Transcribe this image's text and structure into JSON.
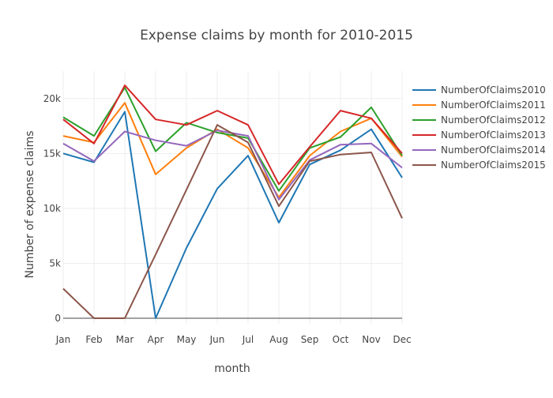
{
  "chart_data": {
    "type": "line",
    "title": "Expense claims by month for 2010-2015",
    "xlabel": "month",
    "ylabel": "Number of expense claims",
    "categories": [
      "Jan",
      "Feb",
      "Mar",
      "Apr",
      "May",
      "Jun",
      "Jul",
      "Aug",
      "Sep",
      "Oct",
      "Nov",
      "Dec"
    ],
    "ylim": [
      -500,
      22500
    ],
    "y_ticks": [
      0,
      5000,
      10000,
      15000,
      20000
    ],
    "y_tick_labels": [
      "0",
      "5k",
      "10k",
      "15k",
      "20k"
    ],
    "grid": true,
    "legend_position": "right",
    "series": [
      {
        "name": "NumberOfClaims2010",
        "color": "#1f77b4",
        "values": [
          15000,
          14200,
          18800,
          0,
          6400,
          11800,
          14800,
          8700,
          14000,
          15300,
          17200,
          12800
        ]
      },
      {
        "name": "NumberOfClaims2011",
        "color": "#ff7f0e",
        "values": [
          16600,
          16000,
          19600,
          13100,
          15500,
          17200,
          15500,
          11000,
          14800,
          17000,
          18200,
          14700
        ]
      },
      {
        "name": "NumberOfClaims2012",
        "color": "#2ca02c",
        "values": [
          18300,
          16600,
          21000,
          15200,
          17800,
          16900,
          16400,
          11600,
          15500,
          16500,
          19200,
          14800
        ]
      },
      {
        "name": "NumberOfClaims2013",
        "color": "#d62728",
        "values": [
          18100,
          15900,
          21200,
          18100,
          17600,
          18900,
          17600,
          12200,
          15600,
          18900,
          18200,
          15000
        ]
      },
      {
        "name": "NumberOfClaims2014",
        "color": "#9467bd",
        "values": [
          15900,
          14300,
          17000,
          16200,
          15700,
          17100,
          16600,
          10800,
          14400,
          15800,
          15900,
          13700
        ]
      },
      {
        "name": "NumberOfClaims2015",
        "color": "#8c564b",
        "values": [
          2700,
          0,
          0,
          5800,
          11700,
          17600,
          16000,
          10200,
          14300,
          14900,
          15100,
          9100
        ]
      }
    ]
  }
}
